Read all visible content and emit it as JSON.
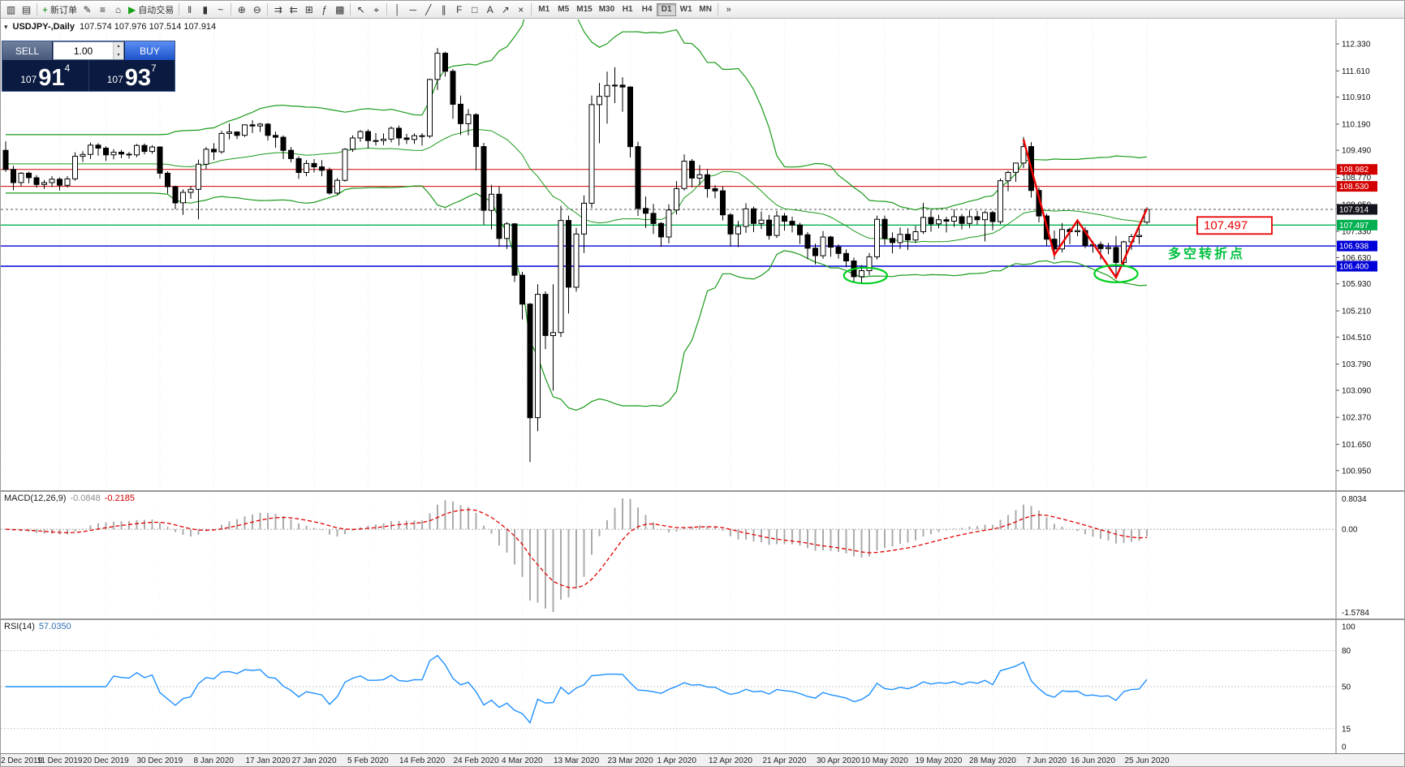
{
  "icons": {
    "collapse": "▾",
    "spin_up": "▴",
    "spin_down": "▾",
    "overflow": "»"
  },
  "toolbar": {
    "groups": [
      {
        "items": [
          {
            "name": "new-chart-icon",
            "glyph": "▥"
          },
          {
            "name": "profiles-icon",
            "glyph": "▤"
          }
        ]
      },
      {
        "items": [
          {
            "name": "new-order-icon",
            "glyph": "+",
            "label": "新订单",
            "color": "#0a8a0a"
          },
          {
            "name": "metaeditor-icon",
            "glyph": "✎"
          },
          {
            "name": "market-watch-icon",
            "glyph": "≡"
          },
          {
            "name": "navigator-icon",
            "glyph": "⌂"
          },
          {
            "name": "autotrading-icon",
            "glyph": "▶",
            "label": "自动交易",
            "color": "#15a015"
          }
        ]
      },
      {
        "items": [
          {
            "name": "bar-chart-icon",
            "glyph": "‖"
          },
          {
            "name": "candlestick-chart-icon",
            "glyph": "▮"
          },
          {
            "name": "line-chart-icon",
            "glyph": "~"
          }
        ]
      },
      {
        "items": [
          {
            "name": "zoom-in-icon",
            "glyph": "⊕"
          },
          {
            "name": "zoom-out-icon",
            "glyph": "⊖"
          }
        ]
      },
      {
        "items": [
          {
            "name": "auto-scroll-icon",
            "glyph": "⇉"
          },
          {
            "name": "chart-shift-icon",
            "glyph": "⇇"
          },
          {
            "name": "grid-icon",
            "glyph": "⊞"
          },
          {
            "name": "indicators-icon",
            "glyph": "ƒ"
          },
          {
            "name": "templates-icon",
            "glyph": "▩"
          }
        ]
      },
      {
        "items": [
          {
            "name": "cursor-icon",
            "glyph": "↖"
          },
          {
            "name": "crosshair-icon",
            "glyph": "⌖"
          }
        ]
      },
      {
        "items": [
          {
            "name": "vertical-line-icon",
            "glyph": "│"
          },
          {
            "name": "horizontal-line-icon",
            "glyph": "─"
          },
          {
            "name": "trendline-icon",
            "glyph": "╱"
          },
          {
            "name": "channel-icon",
            "glyph": "∥"
          },
          {
            "name": "fibonacci-icon",
            "glyph": "F"
          },
          {
            "name": "shapes-icon",
            "glyph": "□"
          },
          {
            "name": "text-label-icon",
            "glyph": "A"
          },
          {
            "name": "arrow-tool-icon",
            "glyph": "↗"
          },
          {
            "name": "delete-object-icon",
            "glyph": "×"
          }
        ]
      }
    ],
    "timeframes": [
      "M1",
      "M5",
      "M15",
      "M30",
      "H1",
      "H4",
      "D1",
      "W1",
      "MN"
    ],
    "active_timeframe": "D1"
  },
  "trade_panel": {
    "sell_label": "SELL",
    "buy_label": "BUY",
    "volume": "1.00",
    "sell_price": {
      "prefix": "107",
      "big": "91",
      "sup": "4"
    },
    "buy_price": {
      "prefix": "107",
      "big": "93",
      "sup": "7"
    }
  },
  "chart": {
    "symbol_title": "USDJPY-,Daily",
    "ohlc_text": "107.574 107.976 107.514 107.914"
  },
  "chart_data": {
    "type": "candlestick+indicators",
    "symbol": "USDJPY-",
    "timeframe": "Daily",
    "y_axis_ticks": [
      "112.330",
      "111.610",
      "110.910",
      "110.190",
      "109.490",
      "108.770",
      "108.050",
      "107.330",
      "106.630",
      "105.930",
      "105.210",
      "104.510",
      "103.790",
      "103.090",
      "102.370",
      "101.650",
      "100.950"
    ],
    "x_labels": [
      "2 Dec 2019",
      "11 Dec 2019",
      "20 Dec 2019",
      "30 Dec 2019",
      "8 Jan 2020",
      "17 Jan 2020",
      "27 Jan 2020",
      "5 Feb 2020",
      "14 Feb 2020",
      "24 Feb 2020",
      "4 Mar 2020",
      "13 Mar 2020",
      "23 Mar 2020",
      "1 Apr 2020",
      "12 Apr 2020",
      "21 Apr 2020",
      "30 Apr 2020",
      "10 May 2020",
      "19 May 2020",
      "28 May 2020",
      "7 Jun 2020",
      "16 Jun 2020",
      "25 Jun 2020"
    ],
    "levels": [
      {
        "price": 108.982,
        "label": "108.982",
        "color": "#d40000",
        "width": 1
      },
      {
        "price": 108.53,
        "label": "108.530",
        "color": "#d40000",
        "width": 1
      },
      {
        "price": 107.497,
        "label": "107.497",
        "color": "#00b050",
        "width": 1.4
      },
      {
        "price": 106.938,
        "label": "106.938",
        "color": "#0000d8",
        "width": 1.4
      },
      {
        "price": 106.4,
        "label": "106.400",
        "color": "#0000d8",
        "width": 1.4
      }
    ],
    "current_price": {
      "price": 107.914,
      "label": "107.914",
      "badge": "#14141e",
      "line": "#555555"
    },
    "bollinger": {
      "period": 20,
      "deviation": 2
    },
    "annotations": {
      "price_callout": "107.497",
      "text": "多空转折点",
      "zigzag": [
        [
          132,
          109.78
        ],
        [
          136,
          106.7
        ],
        [
          139,
          107.62
        ],
        [
          144,
          106.1
        ],
        [
          148,
          107.93
        ]
      ],
      "ellipses": [
        {
          "bar": 111.5,
          "price": 106.15,
          "rx_bars": 2.8,
          "ry_price": 0.21
        },
        {
          "bar": 144.0,
          "price": 106.2,
          "rx_bars": 2.8,
          "ry_price": 0.23
        }
      ]
    },
    "macd": {
      "label": "MACD(12,26,9)",
      "values": [
        "-0.0848",
        "-0.2185"
      ],
      "scale": [
        "0.8034",
        "0.00",
        "-1.5784"
      ],
      "fast": 12,
      "slow": 26,
      "signal": 9
    },
    "rsi": {
      "label": "RSI(14)",
      "value": "57.0350",
      "period": 14,
      "scale": [
        "100",
        "80",
        "50",
        "15",
        "0"
      ],
      "levels": [
        80,
        50,
        15
      ]
    },
    "colors": {
      "bollinger": "#1a9a1a",
      "candle_up": "#ffffff",
      "candle_down": "#000000",
      "candle_stroke": "#000000",
      "macd_hist": "#ababab",
      "macd_signal": "#e00000",
      "rsi_line": "#1e90ff",
      "zigzag": "#ee0000",
      "ellipse": "#00d020",
      "annotation_green": "#00c040",
      "callout_red": "#e80000"
    },
    "candles": [
      [
        109.49,
        109.73,
        108.92,
        108.98
      ],
      [
        108.98,
        109.08,
        108.43,
        108.63
      ],
      [
        108.63,
        108.91,
        108.54,
        108.88
      ],
      [
        108.88,
        108.92,
        108.61,
        108.76
      ],
      [
        108.76,
        108.83,
        108.5,
        108.58
      ],
      [
        108.58,
        108.7,
        108.46,
        108.63
      ],
      [
        108.63,
        108.8,
        108.52,
        108.72
      ],
      [
        108.72,
        108.77,
        108.42,
        108.56
      ],
      [
        108.56,
        108.8,
        108.5,
        108.73
      ],
      [
        108.73,
        109.44,
        108.68,
        109.33
      ],
      [
        109.33,
        109.47,
        109.18,
        109.38
      ],
      [
        109.38,
        109.7,
        109.26,
        109.63
      ],
      [
        109.63,
        109.68,
        109.35,
        109.55
      ],
      [
        109.55,
        109.6,
        109.21,
        109.37
      ],
      [
        109.37,
        109.52,
        109.25,
        109.44
      ],
      [
        109.44,
        109.5,
        109.28,
        109.39
      ],
      [
        109.39,
        109.45,
        109.27,
        109.37
      ],
      [
        109.37,
        109.66,
        109.31,
        109.62
      ],
      [
        109.62,
        109.67,
        109.38,
        109.46
      ],
      [
        109.46,
        109.63,
        109.4,
        109.58
      ],
      [
        109.58,
        109.6,
        108.74,
        108.88
      ],
      [
        108.88,
        108.93,
        108.34,
        108.52
      ],
      [
        108.52,
        108.55,
        107.92,
        108.09
      ],
      [
        108.09,
        108.45,
        107.77,
        108.37
      ],
      [
        108.37,
        108.53,
        108.2,
        108.45
      ],
      [
        108.45,
        109.24,
        107.65,
        109.12
      ],
      [
        109.12,
        109.58,
        108.98,
        109.52
      ],
      [
        109.52,
        109.68,
        109.23,
        109.45
      ],
      [
        109.45,
        110.01,
        109.4,
        109.94
      ],
      [
        109.94,
        110.21,
        109.78,
        109.98
      ],
      [
        109.98,
        110.0,
        109.79,
        109.89
      ],
      [
        109.89,
        110.18,
        109.85,
        110.17
      ],
      [
        110.17,
        110.29,
        109.95,
        110.14
      ],
      [
        110.14,
        110.22,
        109.98,
        110.19
      ],
      [
        110.19,
        110.22,
        109.75,
        109.89
      ],
      [
        109.89,
        109.99,
        109.56,
        109.84
      ],
      [
        109.84,
        109.89,
        109.26,
        109.49
      ],
      [
        109.49,
        109.58,
        109.17,
        109.27
      ],
      [
        109.27,
        109.33,
        108.73,
        108.9
      ],
      [
        108.9,
        109.23,
        108.8,
        109.14
      ],
      [
        109.14,
        109.26,
        108.9,
        109.05
      ],
      [
        109.05,
        109.23,
        108.8,
        108.96
      ],
      [
        108.96,
        109.03,
        108.31,
        108.35
      ],
      [
        108.35,
        108.75,
        108.3,
        108.69
      ],
      [
        108.69,
        109.55,
        108.65,
        109.52
      ],
      [
        109.52,
        109.89,
        109.45,
        109.82
      ],
      [
        109.82,
        110.03,
        109.72,
        109.99
      ],
      [
        109.99,
        110.05,
        109.55,
        109.75
      ],
      [
        109.75,
        109.95,
        109.62,
        109.75
      ],
      [
        109.75,
        109.94,
        109.63,
        109.79
      ],
      [
        109.79,
        110.13,
        109.7,
        110.08
      ],
      [
        110.08,
        110.15,
        109.62,
        109.82
      ],
      [
        109.82,
        109.93,
        109.66,
        109.78
      ],
      [
        109.78,
        109.94,
        109.66,
        109.88
      ],
      [
        109.88,
        109.95,
        109.62,
        109.87
      ],
      [
        109.87,
        111.4,
        109.82,
        111.38
      ],
      [
        111.38,
        112.22,
        111.1,
        112.08
      ],
      [
        112.08,
        112.12,
        111.46,
        111.6
      ],
      [
        111.6,
        111.66,
        110.33,
        110.72
      ],
      [
        110.72,
        110.95,
        109.9,
        110.2
      ],
      [
        110.2,
        110.59,
        109.89,
        110.44
      ],
      [
        110.44,
        110.48,
        108.96,
        109.59
      ],
      [
        109.59,
        109.69,
        107.51,
        107.89
      ],
      [
        107.89,
        108.57,
        107.38,
        108.32
      ],
      [
        108.32,
        108.53,
        106.92,
        107.14
      ],
      [
        107.14,
        107.58,
        106.86,
        107.53
      ],
      [
        107.53,
        107.55,
        105.98,
        106.16
      ],
      [
        106.16,
        106.25,
        104.98,
        105.39
      ],
      [
        105.39,
        105.42,
        101.18,
        102.36
      ],
      [
        102.36,
        105.92,
        102.0,
        105.65
      ],
      [
        105.65,
        105.73,
        104.19,
        104.55
      ],
      [
        104.55,
        105.92,
        103.08,
        104.63
      ],
      [
        104.63,
        108.01,
        104.51,
        107.62
      ],
      [
        107.62,
        107.75,
        105.14,
        105.84
      ],
      [
        105.84,
        107.42,
        105.72,
        107.26
      ],
      [
        107.26,
        108.29,
        106.75,
        108.08
      ],
      [
        108.08,
        110.95,
        107.95,
        110.71
      ],
      [
        110.71,
        111.29,
        109.68,
        110.93
      ],
      [
        110.93,
        111.59,
        110.2,
        111.22
      ],
      [
        111.22,
        111.71,
        110.75,
        111.23
      ],
      [
        111.23,
        111.44,
        110.52,
        111.18
      ],
      [
        111.18,
        111.2,
        109.3,
        109.59
      ],
      [
        109.59,
        109.72,
        107.74,
        107.94
      ],
      [
        107.94,
        108.26,
        107.42,
        107.81
      ],
      [
        107.81,
        108.06,
        107.26,
        107.54
      ],
      [
        107.54,
        107.58,
        106.92,
        107.18
      ],
      [
        107.18,
        108.05,
        107.01,
        107.9
      ],
      [
        107.9,
        108.67,
        107.78,
        108.47
      ],
      [
        108.47,
        109.38,
        108.42,
        109.2
      ],
      [
        109.2,
        109.26,
        108.5,
        108.75
      ],
      [
        108.75,
        109.1,
        108.56,
        108.84
      ],
      [
        108.84,
        108.99,
        108.23,
        108.47
      ],
      [
        108.47,
        108.56,
        108.21,
        108.41
      ],
      [
        108.41,
        108.53,
        107.62,
        107.77
      ],
      [
        107.77,
        107.82,
        106.93,
        107.26
      ],
      [
        107.26,
        107.61,
        106.91,
        107.46
      ],
      [
        107.46,
        108.08,
        107.29,
        107.93
      ],
      [
        107.93,
        107.99,
        107.31,
        107.54
      ],
      [
        107.54,
        107.86,
        107.39,
        107.63
      ],
      [
        107.63,
        107.77,
        107.11,
        107.22
      ],
      [
        107.22,
        107.88,
        107.15,
        107.74
      ],
      [
        107.74,
        107.82,
        107.35,
        107.6
      ],
      [
        107.6,
        107.72,
        107.3,
        107.5
      ],
      [
        107.5,
        107.56,
        106.99,
        107.24
      ],
      [
        107.24,
        107.31,
        106.59,
        106.88
      ],
      [
        106.88,
        107.0,
        106.45,
        106.68
      ],
      [
        106.68,
        107.34,
        106.6,
        107.18
      ],
      [
        107.18,
        107.21,
        106.65,
        106.91
      ],
      [
        106.91,
        106.98,
        106.6,
        106.74
      ],
      [
        106.74,
        106.85,
        106.37,
        106.54
      ],
      [
        106.54,
        106.63,
        105.99,
        106.12
      ],
      [
        106.12,
        106.43,
        105.93,
        106.28
      ],
      [
        106.28,
        106.75,
        106.16,
        106.65
      ],
      [
        106.65,
        107.75,
        106.58,
        107.65
      ],
      [
        107.65,
        107.75,
        106.97,
        107.14
      ],
      [
        107.14,
        107.3,
        106.74,
        107.03
      ],
      [
        107.03,
        107.43,
        106.86,
        107.25
      ],
      [
        107.25,
        107.41,
        106.83,
        107.1
      ],
      [
        107.1,
        107.48,
        107.02,
        107.32
      ],
      [
        107.32,
        108.09,
        107.26,
        107.7
      ],
      [
        107.7,
        107.9,
        107.32,
        107.53
      ],
      [
        107.53,
        107.77,
        107.41,
        107.64
      ],
      [
        107.64,
        107.72,
        107.3,
        107.6
      ],
      [
        107.6,
        107.92,
        107.45,
        107.72
      ],
      [
        107.72,
        107.79,
        107.38,
        107.54
      ],
      [
        107.54,
        107.9,
        107.42,
        107.72
      ],
      [
        107.72,
        107.88,
        107.51,
        107.64
      ],
      [
        107.64,
        107.88,
        107.06,
        107.83
      ],
      [
        107.83,
        107.88,
        107.36,
        107.59
      ],
      [
        107.59,
        108.74,
        107.52,
        108.68
      ],
      [
        108.68,
        108.95,
        108.4,
        108.9
      ],
      [
        108.9,
        109.16,
        108.65,
        109.15
      ],
      [
        109.15,
        109.85,
        109.02,
        109.59
      ],
      [
        109.59,
        109.71,
        108.23,
        108.42
      ],
      [
        108.42,
        108.5,
        107.57,
        107.74
      ],
      [
        107.74,
        107.8,
        106.95,
        107.12
      ],
      [
        107.12,
        107.35,
        106.58,
        106.86
      ],
      [
        106.86,
        107.55,
        106.77,
        107.38
      ],
      [
        107.38,
        107.43,
        106.99,
        107.32
      ],
      [
        107.32,
        107.64,
        107.2,
        107.35
      ],
      [
        107.35,
        107.44,
        106.88,
        106.95
      ],
      [
        106.95,
        107.07,
        106.76,
        106.98
      ],
      [
        106.98,
        107.06,
        106.58,
        106.87
      ],
      [
        106.87,
        107.02,
        106.72,
        106.9
      ],
      [
        106.9,
        107.21,
        106.07,
        106.5
      ],
      [
        106.5,
        107.08,
        106.43,
        107.05
      ],
      [
        107.05,
        107.26,
        106.84,
        107.19
      ],
      [
        107.19,
        107.45,
        106.99,
        107.22
      ],
      [
        107.574,
        107.976,
        107.514,
        107.914
      ]
    ]
  }
}
